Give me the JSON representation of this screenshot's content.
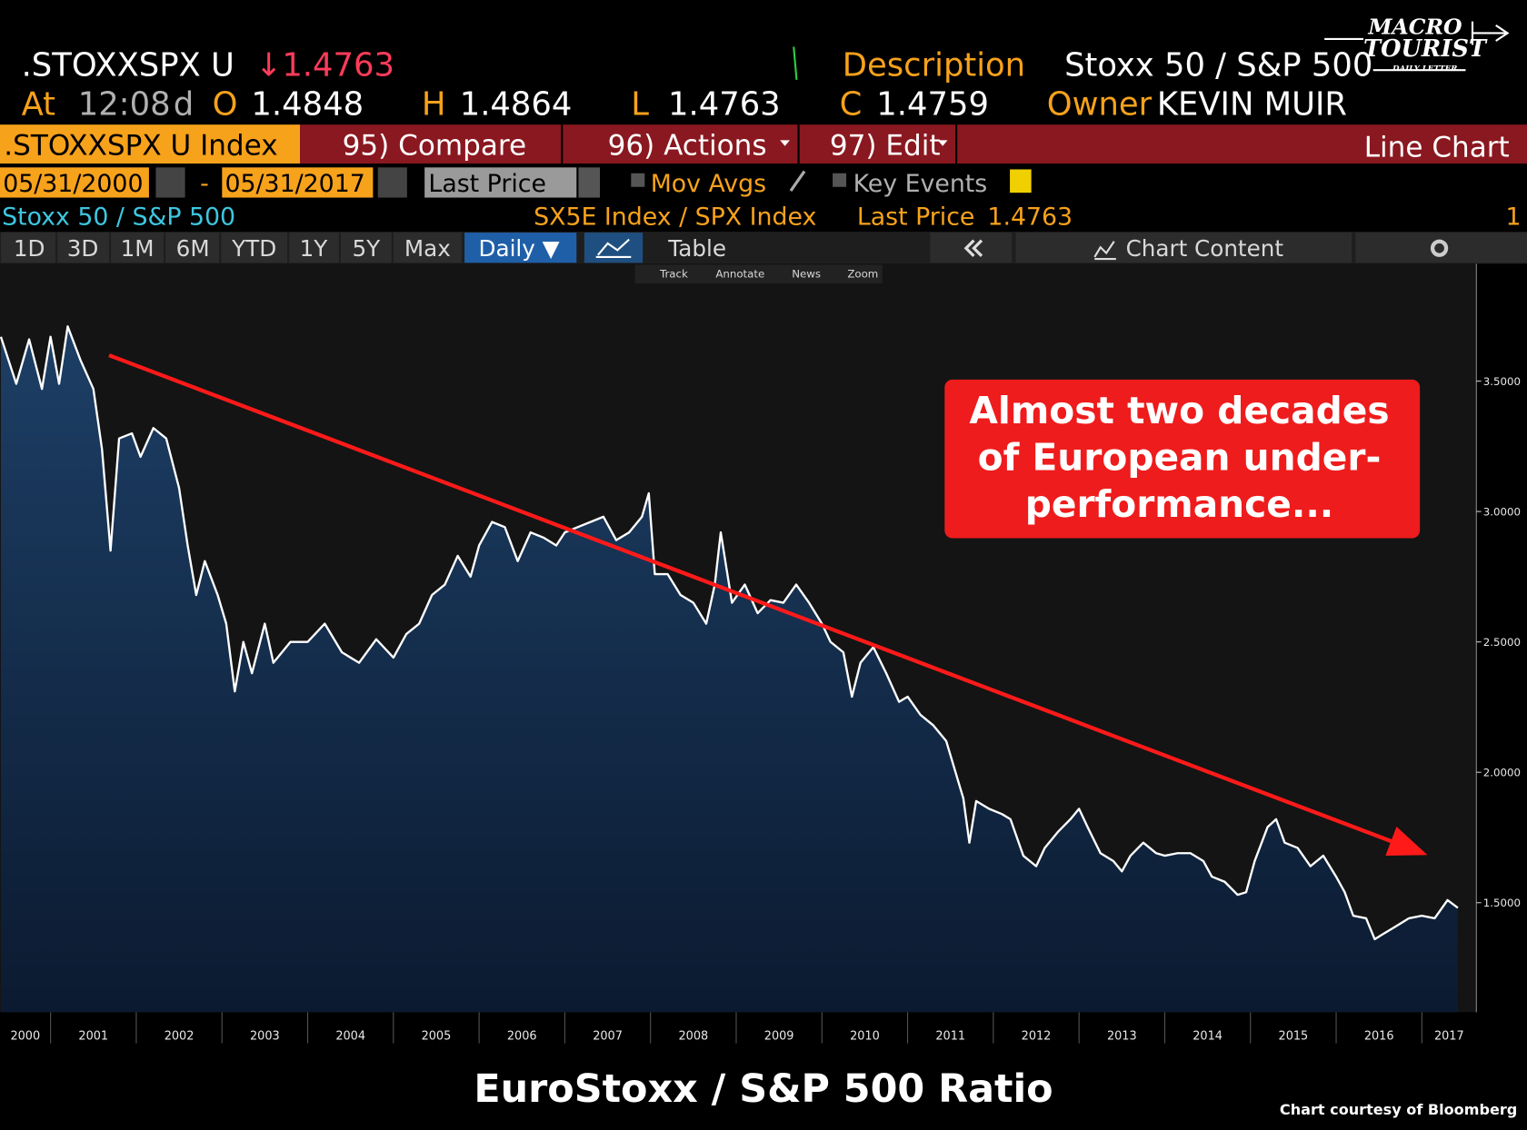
{
  "header": {
    "ticker": ".STOXXSPX U",
    "last": "↓1.4763",
    "description_label": "Description",
    "description": "Stoxx 50 / S&P 500",
    "at_label": "At",
    "time": "12:08",
    "time_suffix": "d",
    "open_label": "O",
    "open": "1.4848",
    "high_label": "H",
    "high": "1.4864",
    "low_label": "L",
    "low": "1.4763",
    "close_label": "C",
    "close": "1.4759",
    "owner_label": "Owner",
    "owner": "KEVIN MUIR"
  },
  "menu": {
    "security": ".STOXXSPX U Index",
    "compare": "95) Compare",
    "actions": "96) Actions",
    "edit": "97) Edit",
    "view": "Line Chart"
  },
  "controls": {
    "start_date": "05/31/2000",
    "date_separator": "-",
    "end_date": "05/31/2017",
    "price_field": "Last Price",
    "mov_avgs": "Mov Avgs",
    "key_events": "Key Events"
  },
  "legend_row": {
    "name": "Stoxx 50 / S&P 500",
    "securities": "SX5E Index / SPX Index",
    "field": "Last Price",
    "field_value": "1.4763",
    "count": "1"
  },
  "tabs": [
    "1D",
    "3D",
    "1M",
    "6M",
    "YTD",
    "1Y",
    "5Y",
    "Max"
  ],
  "frequency": "Daily ▼",
  "table": "Table",
  "chart_content": "Chart Content",
  "toolbar": [
    "Track",
    "Annotate",
    "News",
    "Zoom"
  ],
  "logo": [
    "MACRO",
    "TOURIST",
    "DAILY LETTER"
  ],
  "chart_data": {
    "type": "area",
    "title": "EuroStoxx / S&P 500 Ratio",
    "source": "Chart courtesy of Bloomberg",
    "annotation": [
      "Almost two decades",
      "of European under-",
      "performance..."
    ],
    "color": "#ffffff",
    "fill_color": "#163456",
    "x": [
      2000.42,
      2000.6,
      2000.75,
      2000.9,
      2001.0,
      2001.1,
      2001.2,
      2001.35,
      2001.5,
      2001.6,
      2001.7,
      2001.8,
      2001.95,
      2002.05,
      2002.2,
      2002.35,
      2002.5,
      2002.6,
      2002.7,
      2002.8,
      2002.95,
      2003.05,
      2003.15,
      2003.25,
      2003.35,
      2003.5,
      2003.6,
      2003.8,
      2004.0,
      2004.2,
      2004.4,
      2004.6,
      2004.8,
      2005.0,
      2005.15,
      2005.3,
      2005.45,
      2005.6,
      2005.75,
      2005.9,
      2006.0,
      2006.15,
      2006.3,
      2006.45,
      2006.6,
      2006.75,
      2006.9,
      2007.0,
      2007.15,
      2007.3,
      2007.45,
      2007.6,
      2007.75,
      2007.9,
      2007.98,
      2008.05,
      2008.2,
      2008.35,
      2008.5,
      2008.65,
      2008.75,
      2008.82,
      2008.95,
      2009.1,
      2009.25,
      2009.4,
      2009.55,
      2009.7,
      2009.85,
      2010.0,
      2010.1,
      2010.25,
      2010.35,
      2010.45,
      2010.6,
      2010.75,
      2010.9,
      2011.0,
      2011.15,
      2011.3,
      2011.45,
      2011.55,
      2011.65,
      2011.72,
      2011.8,
      2011.95,
      2012.1,
      2012.2,
      2012.35,
      2012.5,
      2012.6,
      2012.75,
      2012.9,
      2013.0,
      2013.1,
      2013.25,
      2013.4,
      2013.5,
      2013.6,
      2013.75,
      2013.9,
      2014.0,
      2014.15,
      2014.3,
      2014.45,
      2014.55,
      2014.7,
      2014.85,
      2014.95,
      2015.05,
      2015.2,
      2015.3,
      2015.4,
      2015.55,
      2015.7,
      2015.85,
      2016.0,
      2016.1,
      2016.2,
      2016.35,
      2016.45,
      2016.55,
      2016.7,
      2016.85,
      2017.0,
      2017.15,
      2017.3,
      2017.42
    ],
    "values": [
      3.67,
      3.49,
      3.66,
      3.47,
      3.67,
      3.49,
      3.71,
      3.58,
      3.47,
      3.24,
      2.85,
      3.28,
      3.3,
      3.21,
      3.32,
      3.28,
      3.09,
      2.87,
      2.68,
      2.81,
      2.68,
      2.57,
      2.31,
      2.5,
      2.38,
      2.57,
      2.42,
      2.5,
      2.5,
      2.57,
      2.46,
      2.42,
      2.51,
      2.44,
      2.53,
      2.57,
      2.68,
      2.72,
      2.83,
      2.75,
      2.87,
      2.96,
      2.94,
      2.81,
      2.92,
      2.9,
      2.87,
      2.92,
      2.94,
      2.96,
      2.98,
      2.89,
      2.92,
      2.98,
      3.07,
      2.76,
      2.76,
      2.68,
      2.65,
      2.57,
      2.72,
      2.92,
      2.65,
      2.72,
      2.61,
      2.66,
      2.65,
      2.72,
      2.65,
      2.57,
      2.5,
      2.46,
      2.29,
      2.42,
      2.48,
      2.38,
      2.27,
      2.29,
      2.22,
      2.18,
      2.12,
      2.01,
      1.9,
      1.73,
      1.89,
      1.86,
      1.84,
      1.82,
      1.68,
      1.64,
      1.71,
      1.77,
      1.82,
      1.86,
      1.79,
      1.69,
      1.66,
      1.62,
      1.68,
      1.73,
      1.69,
      1.68,
      1.69,
      1.69,
      1.66,
      1.6,
      1.58,
      1.53,
      1.54,
      1.66,
      1.79,
      1.82,
      1.73,
      1.71,
      1.64,
      1.68,
      1.6,
      1.54,
      1.45,
      1.44,
      1.36,
      1.38,
      1.41,
      1.44,
      1.45,
      1.44,
      1.51,
      1.48
    ],
    "xlim": [
      2000.41,
      2017.42
    ],
    "xticks": [
      2000,
      2001,
      2002,
      2003,
      2004,
      2005,
      2006,
      2007,
      2008,
      2009,
      2010,
      2011,
      2012,
      2013,
      2014,
      2015,
      2016,
      2017
    ],
    "ylim": [
      1.08,
      3.95
    ],
    "yticks": [
      {
        "value": 1.5,
        "label": "1.5000"
      },
      {
        "value": 2,
        "label": "2.0000"
      },
      {
        "value": 2.5,
        "label": "2.5000"
      },
      {
        "value": 3,
        "label": "3.0000"
      },
      {
        "value": 3.5,
        "label": "3.5000"
      }
    ]
  }
}
